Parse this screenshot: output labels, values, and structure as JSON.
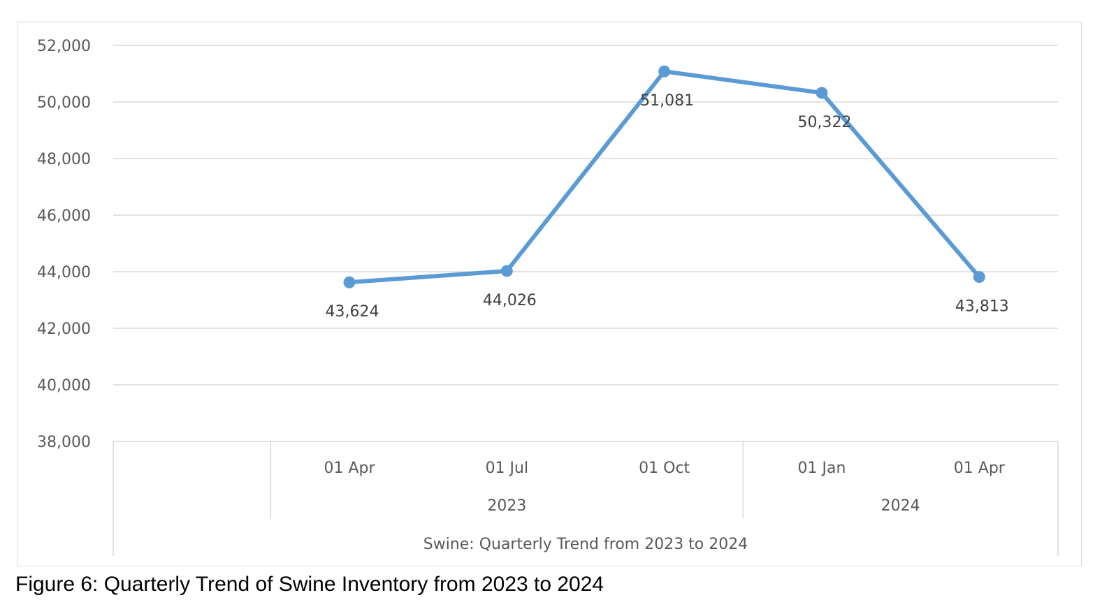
{
  "caption": "Figure 6: Quarterly Trend of Swine Inventory from 2023 to 2024",
  "chart_data": {
    "type": "line",
    "title": "",
    "xlabel": "Swine: Quarterly Trend from 2023 to 2024",
    "ylabel": "",
    "categories": [
      "",
      "01 Apr",
      "01 Jul",
      "01 Oct",
      "01 Jan",
      "01 Apr"
    ],
    "year_groups": [
      {
        "label": "2023",
        "categories": [
          "01 Apr",
          "01 Jul",
          "01 Oct"
        ]
      },
      {
        "label": "2024",
        "categories": [
          "01 Jan",
          "01 Apr"
        ]
      }
    ],
    "series": [
      {
        "values": [
          null,
          43624,
          44026,
          51081,
          50322,
          43813
        ]
      }
    ],
    "data_labels": [
      "",
      "43,624",
      "44,026",
      "51,081",
      "50,322",
      "43,813"
    ],
    "ylim": [
      38000,
      52000
    ],
    "yticks": [
      "38,000",
      "40,000",
      "42,000",
      "44,000",
      "46,000",
      "48,000",
      "50,000",
      "52,000"
    ],
    "grid": true,
    "legend": "none",
    "colors": {
      "line": "#5b9bd5",
      "grid": "#d9d9d9",
      "axis": "#d9d9d9"
    }
  }
}
